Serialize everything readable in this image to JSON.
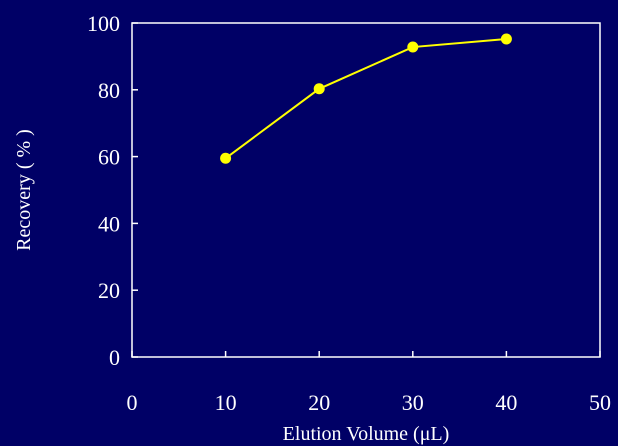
{
  "chart_data": {
    "type": "line",
    "x": [
      10,
      20,
      30,
      40
    ],
    "series": [
      {
        "values": [
          59.5,
          80.3,
          92.8,
          95.2
        ]
      }
    ],
    "xlabel": "Elution Volume (μL)",
    "ylabel": "Recovery ( % )",
    "xlim": [
      0,
      50
    ],
    "ylim": [
      0,
      100
    ],
    "xticks": [
      "0",
      "10",
      "20",
      "30",
      "40",
      "50"
    ],
    "yticks": [
      "0",
      "20",
      "40",
      "60",
      "80",
      "100"
    ],
    "grid": false,
    "legend": "none",
    "colors": {
      "background": "#000066",
      "axes": "#ffffff",
      "series_line": "#ffff00",
      "marker": "#ffff00",
      "text": "#ffffff"
    }
  }
}
